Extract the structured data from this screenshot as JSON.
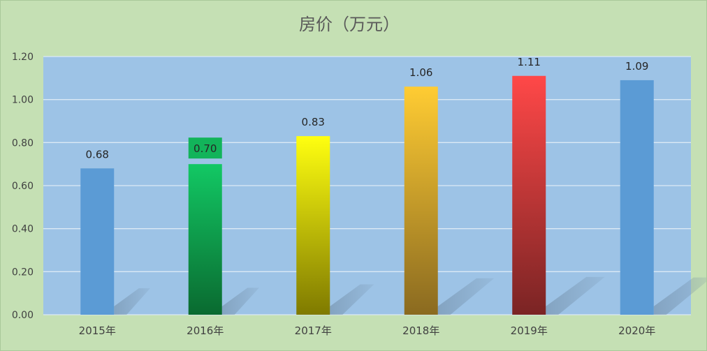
{
  "chart_data": {
    "type": "bar",
    "title": "房价（万元）",
    "categories": [
      "2015年",
      "2016年",
      "2017年",
      "2018年",
      "2019年",
      "2020年"
    ],
    "values": [
      0.68,
      0.7,
      0.83,
      1.06,
      1.11,
      1.09
    ],
    "value_labels": [
      "0.68",
      "0.70",
      "0.83",
      "1.06",
      "1.11",
      "1.09"
    ],
    "ylim": [
      0,
      1.2
    ],
    "yticks": [
      0,
      0.2,
      0.4,
      0.6,
      0.8,
      1.0,
      1.2
    ],
    "ytick_labels": [
      "0.00",
      "0.20",
      "0.40",
      "0.60",
      "0.80",
      "1.00",
      "1.20"
    ],
    "grid": true,
    "legend": "none",
    "colors": {
      "page_background": "#c5e0b4",
      "plot_background": "#9dc3e6",
      "gridline": "#dce9f5",
      "bar_2015": "#5b9bd5",
      "bar_2016_top": "#12c864",
      "bar_2016_bottom": "#0a6a30",
      "bar_2017_top": "#ffff10",
      "bar_2017_bottom": "#7f7a00",
      "bar_2018_top": "#ffcc33",
      "bar_2018_bottom": "#8a6a20",
      "bar_2019_top": "#ff4848",
      "bar_2019_bottom": "#7a2424",
      "bar_2020": "#5b9bd5",
      "label_badge_2016": "#12b45a"
    }
  }
}
